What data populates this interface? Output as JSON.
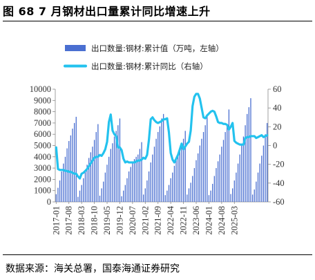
{
  "figure": {
    "title": "图 68 7 月钢材出口量累计同比增速上升",
    "source": "数据来源：海关总署，国泰海通证券研究"
  },
  "chart_data": {
    "type": "bar",
    "title": "",
    "legend": [
      {
        "label": "出口数量:钢材:累计值（万吨，左轴）",
        "color": "#4a6fd1",
        "kind": "bar"
      },
      {
        "label": "出口数量:钢材:累计同比（右轴）",
        "color": "#23c2ee",
        "kind": "line"
      }
    ],
    "y_left": {
      "min": 0,
      "max": 10000,
      "ticks": [
        0,
        1000,
        2000,
        3000,
        4000,
        5000,
        6000,
        7000,
        8000,
        9000,
        10000
      ]
    },
    "y_right": {
      "min": -60,
      "max": 60,
      "ticks": [
        -60,
        -40,
        -20,
        0,
        20,
        40,
        60
      ]
    },
    "x_tick_labels": [
      "2017-01",
      "2017-08",
      "2018-03",
      "2018-10",
      "2019-05",
      "2019-12",
      "2020-07",
      "2021-02",
      "2021-09",
      "2022-04",
      "2022-11",
      "2023-06",
      "2024-01",
      "2024-08",
      "2025-03"
    ],
    "x_start": "2017-01",
    "series": [
      {
        "name": "出口数量:钢材:累计值（万吨，左轴）",
        "kind": "bar",
        "axis": "left",
        "values": [
          680,
          1250,
          1900,
          2700,
          3400,
          4000,
          4750,
          5400,
          5900,
          6500,
          7000,
          7550,
          450,
          1000,
          1500,
          2100,
          2700,
          3300,
          3900,
          4400,
          4900,
          5500,
          6200,
          6900,
          550,
          1200,
          1800,
          2600,
          3300,
          4000,
          4700,
          5200,
          5800,
          6300,
          6800,
          7400,
          500,
          1000,
          1500,
          2100,
          2700,
          3100,
          3500,
          3800,
          4000,
          4200,
          4700,
          5300,
          650,
          1200,
          1900,
          2700,
          3500,
          4200,
          4900,
          5600,
          6200,
          6700,
          7400,
          7800,
          600,
          1000,
          1500,
          2100,
          2600,
          3200,
          3700,
          4200,
          4600,
          5100,
          5600,
          6300,
          650,
          1200,
          1700,
          2300,
          3000,
          3700,
          4300,
          5000,
          5600,
          6200,
          6800,
          7600,
          600,
          1000,
          1600,
          2300,
          3000,
          3600,
          4200,
          4900,
          5500,
          6200,
          6900,
          8200,
          700,
          1200,
          1900,
          2600,
          3400,
          4200,
          5000,
          5800,
          6800,
          7800,
          8400,
          9200,
          650,
          1100,
          1800,
          2600,
          3400,
          4100,
          5000,
          6000,
          7000
        ]
      },
      {
        "name": "出口数量:钢材:累计同比（右轴）",
        "kind": "line",
        "axis": "right",
        "values": [
          -2,
          -25,
          -26,
          -26,
          -26,
          -27,
          -27,
          -28,
          -28,
          -29,
          -30,
          -30,
          -33,
          -35,
          -30,
          -29,
          -27,
          -25,
          -22,
          -19,
          -16,
          -13,
          -12,
          -12,
          -10,
          -11,
          -8,
          -4,
          4,
          25,
          33,
          16,
          12,
          10,
          -2,
          -2,
          -5,
          -14,
          -18,
          -17,
          -18,
          -18,
          -18,
          -18,
          -17,
          -16,
          -16,
          -15,
          -13,
          -14,
          -10,
          6,
          28,
          30,
          27,
          25,
          24,
          25,
          26,
          28,
          28,
          29,
          14,
          -8,
          -15,
          -18,
          -14,
          -10,
          -4,
          2,
          -4,
          -1,
          2,
          4,
          16,
          42,
          52,
          55,
          55,
          50,
          40,
          30,
          29,
          32,
          34,
          36,
          37,
          36,
          31,
          25,
          24,
          24,
          23,
          23,
          22,
          17,
          20,
          24,
          5,
          3,
          2,
          1,
          1,
          1,
          8,
          9,
          9,
          10,
          10,
          10,
          8,
          9,
          10,
          11,
          9,
          10,
          11
        ]
      }
    ]
  }
}
